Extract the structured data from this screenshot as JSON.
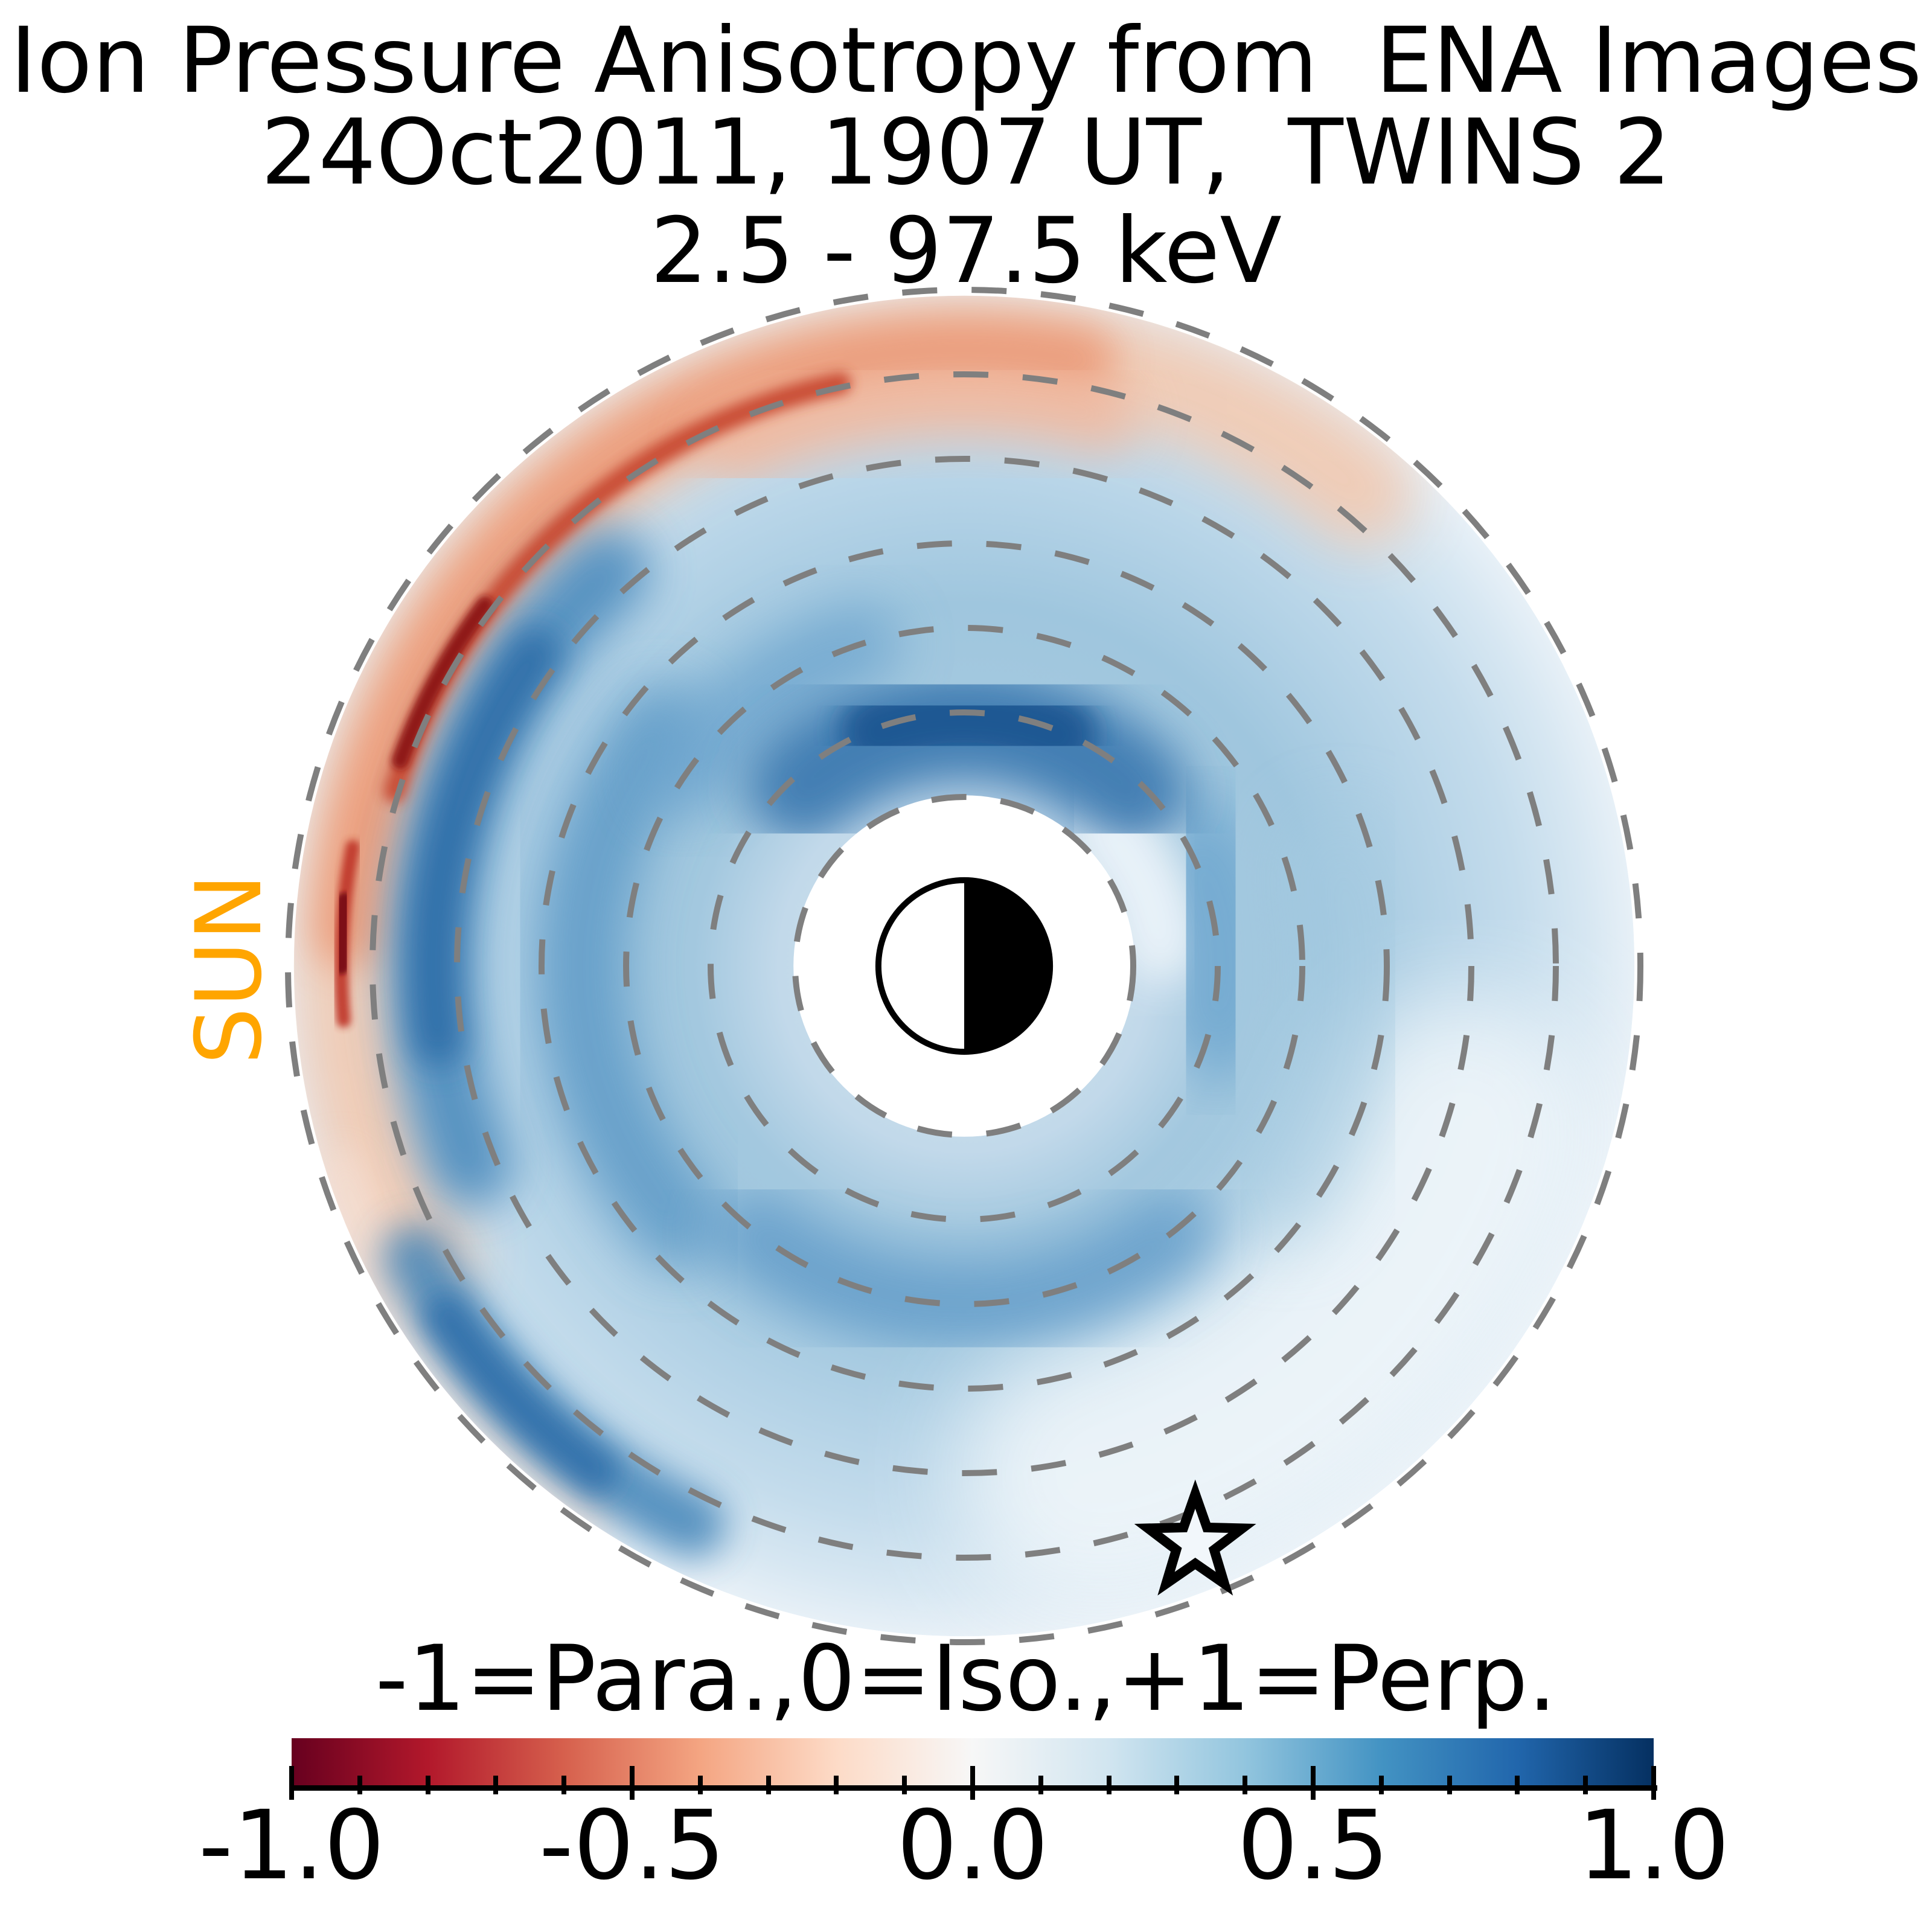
{
  "title": {
    "line1": "Ion Pressure Anisotropy from  ENA Images",
    "line2": "24Oct2011, 1907 UT,  TWINS 2",
    "line3": "2.5 - 97.5 keV"
  },
  "labels": {
    "sun": "SUN",
    "colorbar": "-1=Para.,0=Iso.,+1=Perp."
  },
  "colors": {
    "sun_label": "#FFA500",
    "text": "#000000",
    "dashed_ring": "#7f7f7f",
    "background": "#ffffff"
  },
  "chart_data": {
    "type": "heatmap",
    "projection": "polar",
    "title": "Ion Pressure Anisotropy from ENA Images",
    "subtitle": "24Oct2011, 1907 UT, TWINS 2",
    "energy_range_keV": "2.5 - 97.5 keV",
    "quantity": "ion pressure anisotropy",
    "value_range": [
      -1,
      1
    ],
    "value_meaning": {
      "-1": "parallel (Para.)",
      "0": "isotropic (Iso.)",
      "+1": "perpendicular (Perp.)"
    },
    "sun_direction": "left",
    "radial_rings_RE": [
      2,
      3,
      4,
      5,
      6,
      7,
      8
    ],
    "data_disk_radius_RE": 7.93,
    "inner_data_gap_RE": 2.02,
    "earth": {
      "radius_RE": 1.015,
      "dayside": "left half white (sunward)",
      "nightside": "right half black"
    },
    "spacecraft_marker": {
      "symbol": "star",
      "radius_RE": 7.36,
      "angle_deg": 68.2
    },
    "angle_convention": "degrees, 0=right, 90=down, 180=left(sunward), 270=up; radii in Earth radii",
    "field_summary": "Mostly weak-to-moderate perpendicular anisotropy (blue, ~0.1-0.5) across the ring current; a parallel-anisotropy band (red, to ~-0.8) along the outer duskside/dayside edge near L=7-8 with a sharp dark-red ridge; strongest perpendicular patches just above the inner data gap near midnight and at dusk L~6",
    "base_gradient": [
      {
        "r": 0.0,
        "color": "#cfe2ef"
      },
      {
        "r": 2.2,
        "color": "#c2d9ea"
      },
      {
        "r": 3.2,
        "color": "#a3c8df"
      },
      {
        "r": 4.3,
        "color": "#9fc6de"
      },
      {
        "r": 5.5,
        "color": "#b3d2e6"
      },
      {
        "r": 6.6,
        "color": "#c4dcec"
      },
      {
        "r": 7.4,
        "color": "#d7e7f2"
      },
      {
        "r": 7.93,
        "color": "#e7f0f7"
      }
    ],
    "features": [
      {
        "name": "pale-bottom-right",
        "r": 6.2,
        "w": 3.2,
        "a0": 18,
        "a1": 76,
        "color": "#f3f8fb",
        "blur": 80,
        "opacity": 0.85
      },
      {
        "name": "hole-right-light",
        "r": 2.35,
        "w": 0.9,
        "a0": 316,
        "a1": 354,
        "color": "#eef5fa",
        "blur": 35,
        "opacity": 0.9
      },
      {
        "name": "right-mid-soft",
        "r": 4.6,
        "w": 1.3,
        "a0": 345,
        "a1": 395,
        "color": "#a6cbe1",
        "blur": 55,
        "opacity": 0.55
      },
      {
        "name": "left-mid-swirl",
        "r": 4.55,
        "w": 1.05,
        "a0": 138,
        "a1": 218,
        "color": "#5996c5",
        "blur": 45,
        "opacity": 0.8
      },
      {
        "name": "upper-left-inner-swirl",
        "r": 4.0,
        "w": 0.95,
        "a0": 214,
        "a1": 252,
        "color": "#6ba3cd",
        "blur": 45,
        "opacity": 0.75
      },
      {
        "name": "bottom-blue-band",
        "r": 4.0,
        "w": 1.05,
        "a0": 52,
        "a1": 128,
        "color": "#5e9ac8",
        "blur": 45,
        "opacity": 0.8
      },
      {
        "name": "right-blue-blob",
        "r": 3.05,
        "w": 1.45,
        "a0": 336,
        "a1": 372,
        "color": "#6ba4ce",
        "blur": 50,
        "opacity": 0.8
      },
      {
        "name": "inner-dark-cap",
        "r": 2.85,
        "w": 1.35,
        "a0": 228,
        "a1": 314,
        "color": "#3c7ab1",
        "blur": 40,
        "opacity": 0.95
      },
      {
        "name": "inner-dark-core",
        "r": 2.95,
        "w": 0.9,
        "a0": 250,
        "a1": 292,
        "color": "#1c5692",
        "blur": 22,
        "opacity": 0.95
      },
      {
        "name": "peach-outer-band",
        "r": 7.3,
        "w": 1.25,
        "a0": 152,
        "a1": 310,
        "color": "#f3c9b0",
        "blur": 45,
        "opacity": 0.9
      },
      {
        "name": "pale-pink-lower-left",
        "r": 7.75,
        "w": 0.5,
        "a0": 124,
        "a1": 162,
        "color": "#f6ded0",
        "blur": 30,
        "opacity": 0.85
      },
      {
        "name": "salmon-band",
        "r": 7.3,
        "w": 0.8,
        "a0": 183,
        "a1": 281,
        "color": "#eb9a78",
        "blur": 32,
        "opacity": 0.9
      },
      {
        "name": "top-red-inward",
        "r": 6.7,
        "w": 0.9,
        "a0": 246,
        "a1": 284,
        "color": "#f2b79c",
        "blur": 40,
        "opacity": 0.8
      },
      {
        "name": "left-blue-band",
        "r": 6.3,
        "w": 1.0,
        "a0": 158,
        "a1": 228,
        "color": "#4c8bbd",
        "blur": 38,
        "opacity": 0.9
      },
      {
        "name": "left-blue-core",
        "r": 6.28,
        "w": 0.62,
        "a0": 172,
        "a1": 216,
        "color": "#2e6da7",
        "blur": 26,
        "opacity": 0.9
      },
      {
        "name": "lower-left-blue-arc",
        "r": 7.35,
        "w": 0.8,
        "a0": 116,
        "a1": 152,
        "color": "#4384b8",
        "blur": 30,
        "opacity": 0.85
      },
      {
        "name": "lower-left-blue-core",
        "r": 7.4,
        "w": 0.5,
        "a0": 126,
        "a1": 146,
        "color": "#2e6da8",
        "blur": 22,
        "opacity": 0.85
      },
      {
        "name": "red-ridge",
        "r": 7.05,
        "w": 0.26,
        "a0": 197,
        "a1": 258,
        "color": "#c84a33",
        "blur": 10,
        "opacity": 0.95
      },
      {
        "name": "dark-red-streak",
        "r": 7.1,
        "w": 0.2,
        "a0": 200,
        "a1": 217,
        "color": "#8c1216",
        "blur": 6,
        "opacity": 0.95
      },
      {
        "name": "left-red-line",
        "r": 7.37,
        "w": 0.17,
        "a0": 175,
        "a1": 191,
        "color": "#c0392b",
        "blur": 6,
        "opacity": 0.95
      },
      {
        "name": "left-red-spot",
        "r": 7.37,
        "w": 0.2,
        "a0": 180,
        "a1": 186,
        "color": "#7a0c12",
        "blur": 4,
        "opacity": 0.95
      }
    ],
    "colorbar": {
      "ticks": [
        -1.0,
        -0.5,
        0.0,
        0.5,
        1.0
      ],
      "tick_labels": [
        "-1.0",
        "-0.5",
        "0.0",
        "0.5",
        "1.0"
      ],
      "minor_tick_step": 0.1,
      "cmap": "RdBu (red = parallel/negative, blue = perpendicular/positive)",
      "stops": [
        {
          "pos": 0.0,
          "color": "#67001f"
        },
        {
          "pos": 0.1,
          "color": "#b2182b"
        },
        {
          "pos": 0.2,
          "color": "#d6604d"
        },
        {
          "pos": 0.3,
          "color": "#f4a582"
        },
        {
          "pos": 0.4,
          "color": "#fddbc7"
        },
        {
          "pos": 0.5,
          "color": "#f7f7f7"
        },
        {
          "pos": 0.6,
          "color": "#d1e5f0"
        },
        {
          "pos": 0.7,
          "color": "#92c5de"
        },
        {
          "pos": 0.8,
          "color": "#4393c3"
        },
        {
          "pos": 0.9,
          "color": "#2166ac"
        },
        {
          "pos": 1.0,
          "color": "#053061"
        }
      ]
    }
  }
}
